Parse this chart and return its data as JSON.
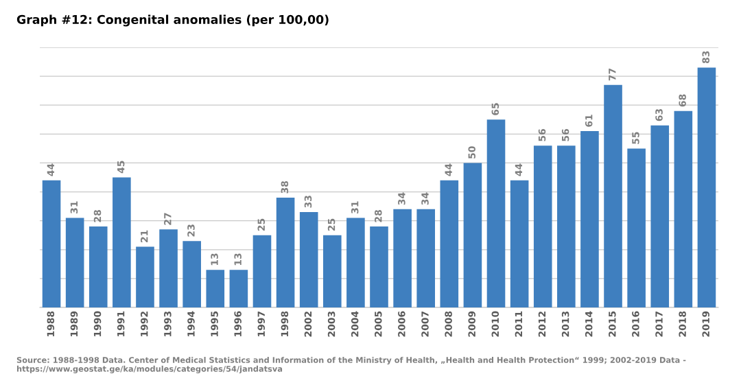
{
  "chart_data": {
    "type": "bar",
    "title": "Graph #12: Congenital anomalies (per 100,00)",
    "categories": [
      "1988",
      "1989",
      "1990",
      "1991",
      "1992",
      "1993",
      "1994",
      "1995",
      "1996",
      "1997",
      "1998",
      "2002",
      "2003",
      "2004",
      "2005",
      "2006",
      "2007",
      "2008",
      "2009",
      "2010",
      "2011",
      "2012",
      "2013",
      "2014",
      "2015",
      "2016",
      "2017",
      "2018",
      "2019"
    ],
    "values": [
      44,
      31,
      28,
      45,
      21,
      27,
      23,
      13,
      13,
      25,
      38,
      33,
      25,
      31,
      28,
      34,
      34,
      44,
      50,
      65,
      44,
      56,
      56,
      61,
      77,
      55,
      63,
      68,
      83
    ],
    "color": "#3f7fbf",
    "data_labels": true,
    "ylim": [
      0,
      90
    ],
    "yticks": [
      {
        "value": 0,
        "label": null
      },
      {
        "value": 10,
        "label": null
      },
      {
        "value": 20,
        "label": null
      },
      {
        "value": 30,
        "label": null
      },
      {
        "value": 40,
        "label": null
      },
      {
        "value": 50,
        "label": null
      },
      {
        "value": 60,
        "label": null
      },
      {
        "value": 70,
        "label": null
      },
      {
        "value": 80,
        "label": null
      },
      {
        "value": 90,
        "label": null
      }
    ],
    "grid": "y",
    "annotations": [
      "Source: 1988-1998 Data. Center of Medical Statistics and Information of the Ministry of Health, „Health and Health Protection“ 1999; 2002-2019 Data - https://www.geostat.ge/ka/modules/categories/54/jandatsva"
    ]
  }
}
